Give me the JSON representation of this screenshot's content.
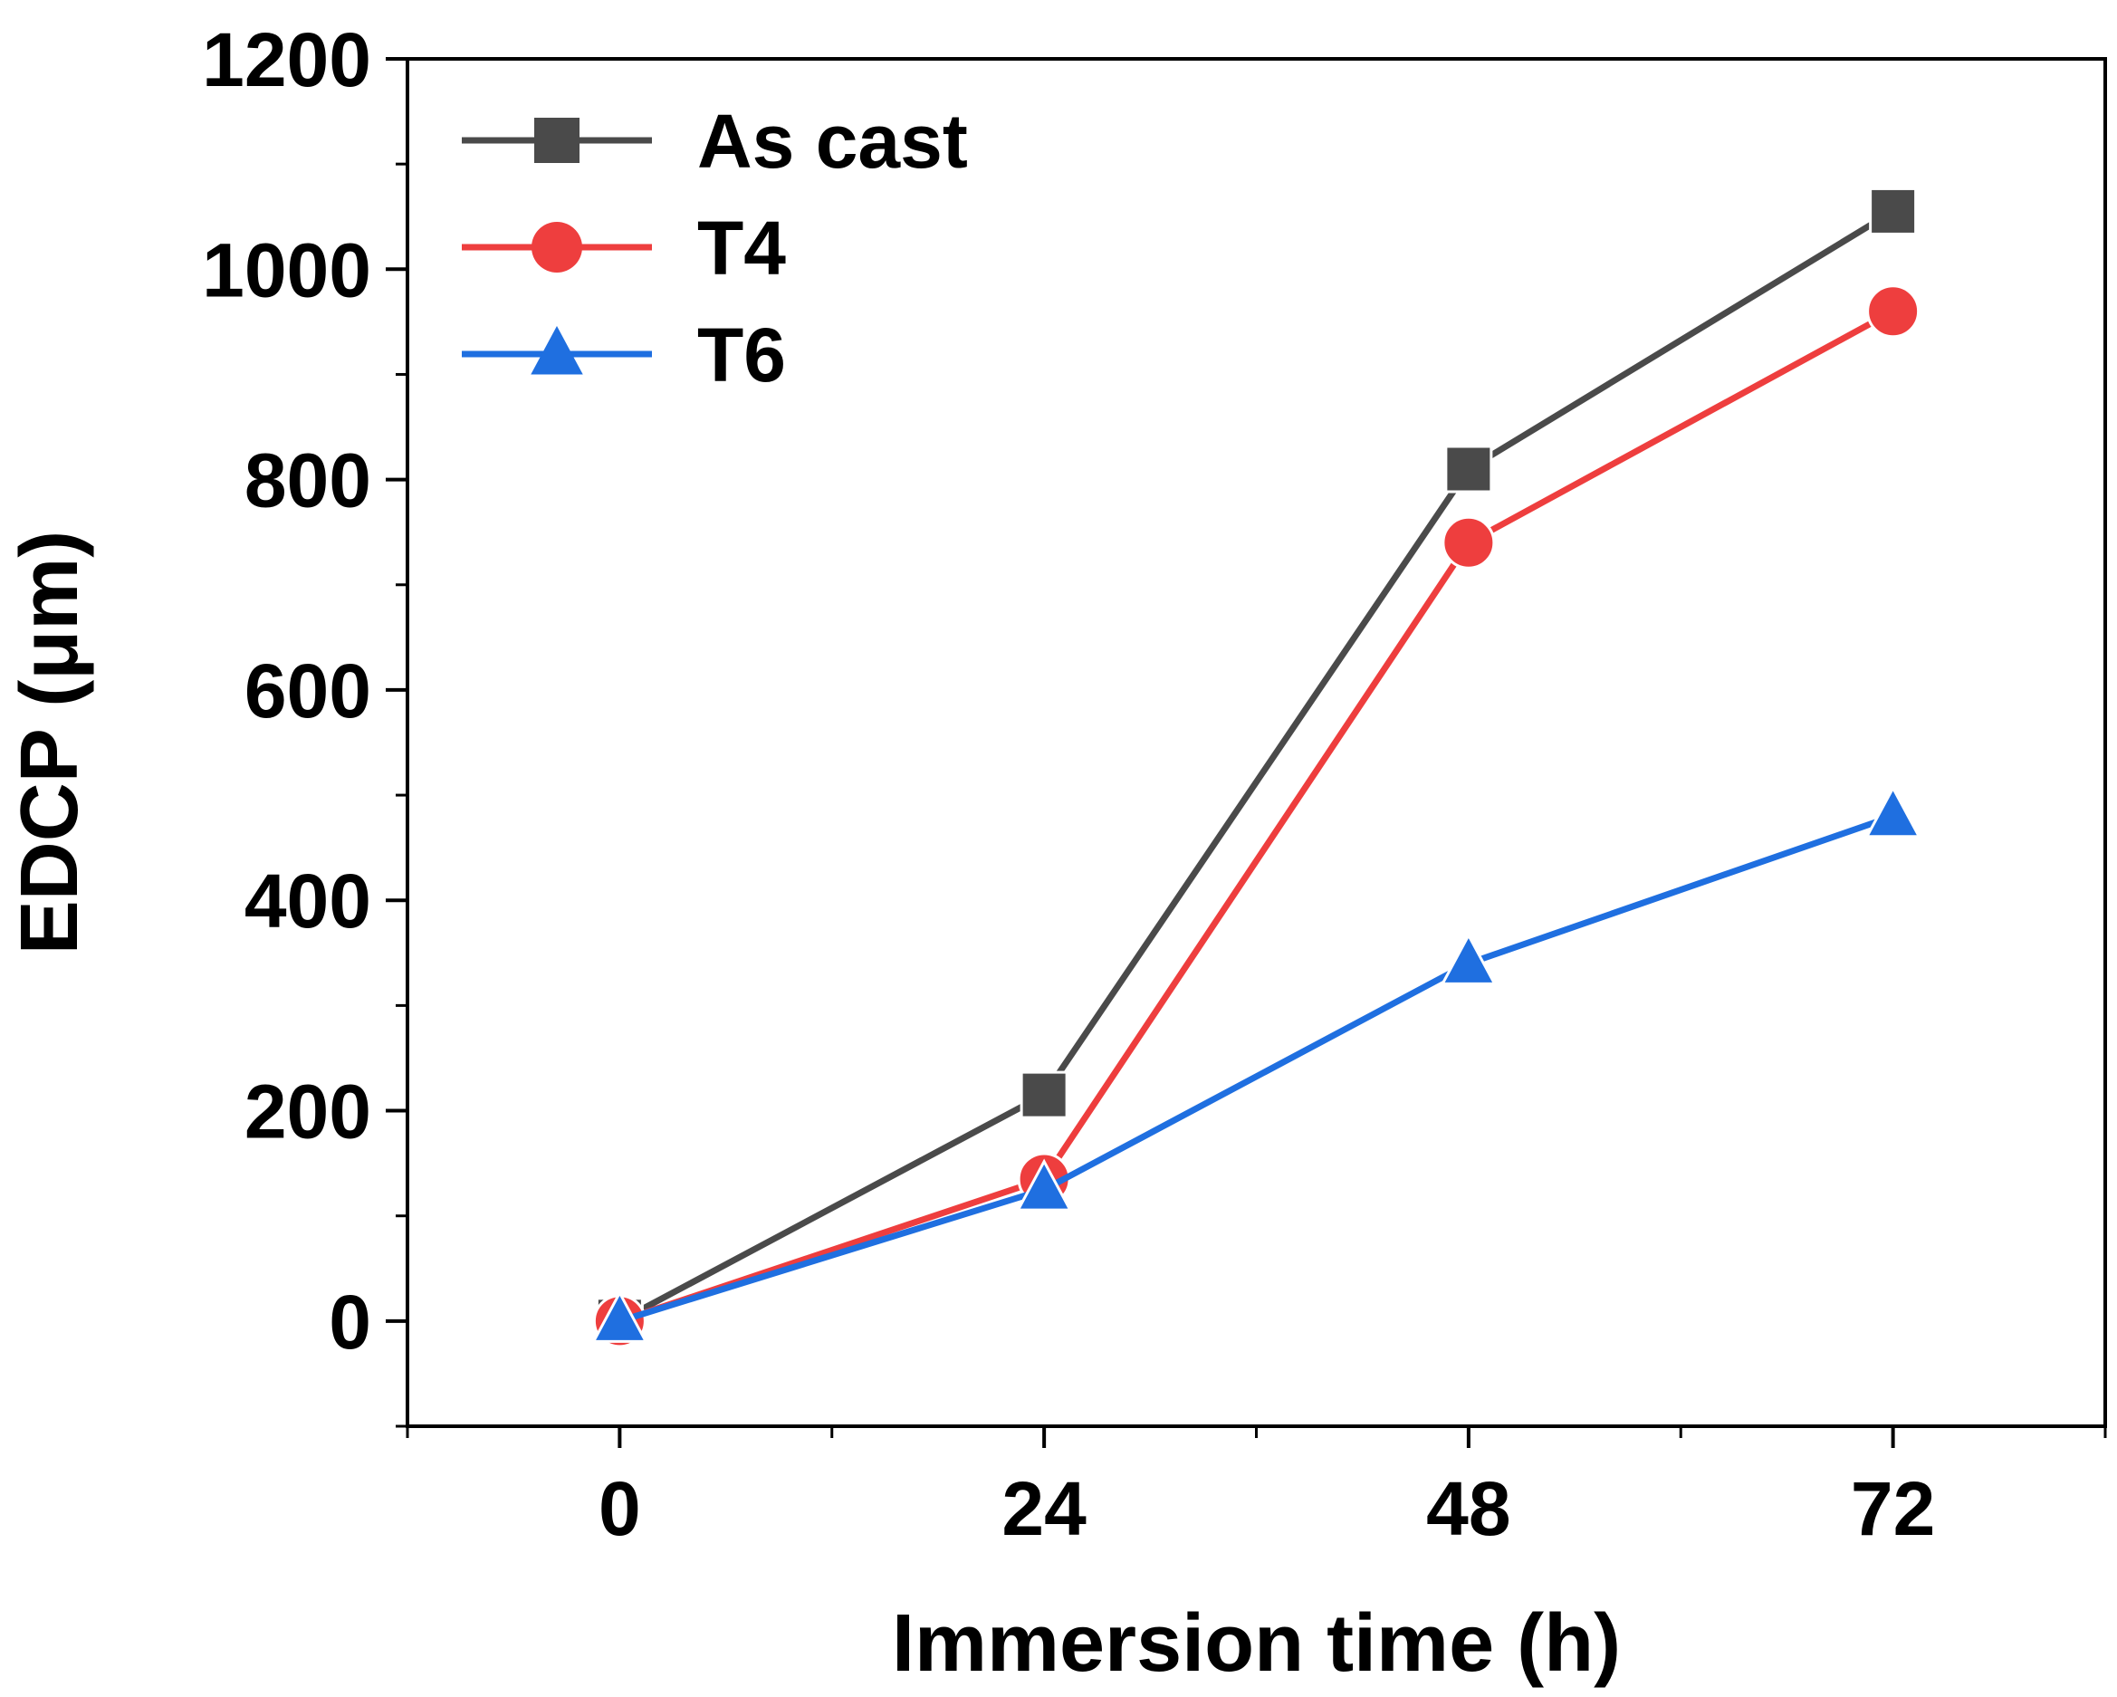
{
  "chart_data": {
    "type": "line",
    "title": "",
    "xlabel": "Immersion time (h)",
    "ylabel": "EDCP (μm)",
    "x": [
      0,
      24,
      48,
      72
    ],
    "xticks": [
      "0",
      "24",
      "48",
      "72"
    ],
    "yticks": [
      "0",
      "200",
      "400",
      "600",
      "800",
      "1000",
      "1200"
    ],
    "xlim": [
      -12,
      84
    ],
    "ylim": [
      -100,
      1200
    ],
    "grid": false,
    "legend_position": "top-left",
    "series": [
      {
        "name": "As cast",
        "values": [
          0,
          215,
          810,
          1055
        ],
        "color": "#4a4a4a",
        "marker": "square"
      },
      {
        "name": "T4",
        "values": [
          0,
          135,
          740,
          960
        ],
        "color": "#ee3e3e",
        "marker": "circle"
      },
      {
        "name": "T6",
        "values": [
          0,
          125,
          340,
          480
        ],
        "color": "#1f6fe0",
        "marker": "triangle"
      }
    ]
  }
}
